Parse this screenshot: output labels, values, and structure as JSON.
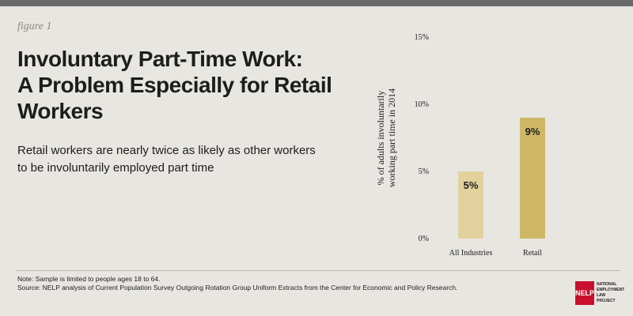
{
  "figure_label": "figure 1",
  "title_lines": [
    "Involuntary Part-Time Work:",
    "A Problem Especially for Retail",
    "Workers"
  ],
  "subtitle_lines": [
    "Retail workers are nearly twice as likely as other workers",
    "to be involuntarily employed part time"
  ],
  "notes": [
    "Note: Sample is limited to people ages 18 to 64.",
    "Source: NELP analysis of Current Population Survey Outgoing Rotation Group Uniform Extracts from the Center for Economic and Policy Research."
  ],
  "logo": {
    "mark": "NELP",
    "lines": [
      "NATIONAL",
      "EMPLOYMENT",
      "LAW",
      "PROJECT"
    ]
  },
  "colors": {
    "bar_all": "#e2d19c",
    "bar_retail": "#cfb865",
    "background": "#e8e6e1",
    "logo_red": "#c8102e"
  },
  "chart_data": {
    "type": "bar",
    "categories": [
      "All Industries",
      "Retail"
    ],
    "values": [
      5,
      9
    ],
    "data_labels": [
      "5%",
      "9%"
    ],
    "ylabel_lines": [
      "% of adults involuntarily",
      "working part time in 2014"
    ],
    "ylim": [
      0,
      15
    ],
    "yticks": [
      0,
      5,
      10,
      15
    ],
    "ytick_labels": [
      "0%",
      "5%",
      "10%",
      "15%"
    ],
    "grid": false,
    "legend": "none"
  }
}
